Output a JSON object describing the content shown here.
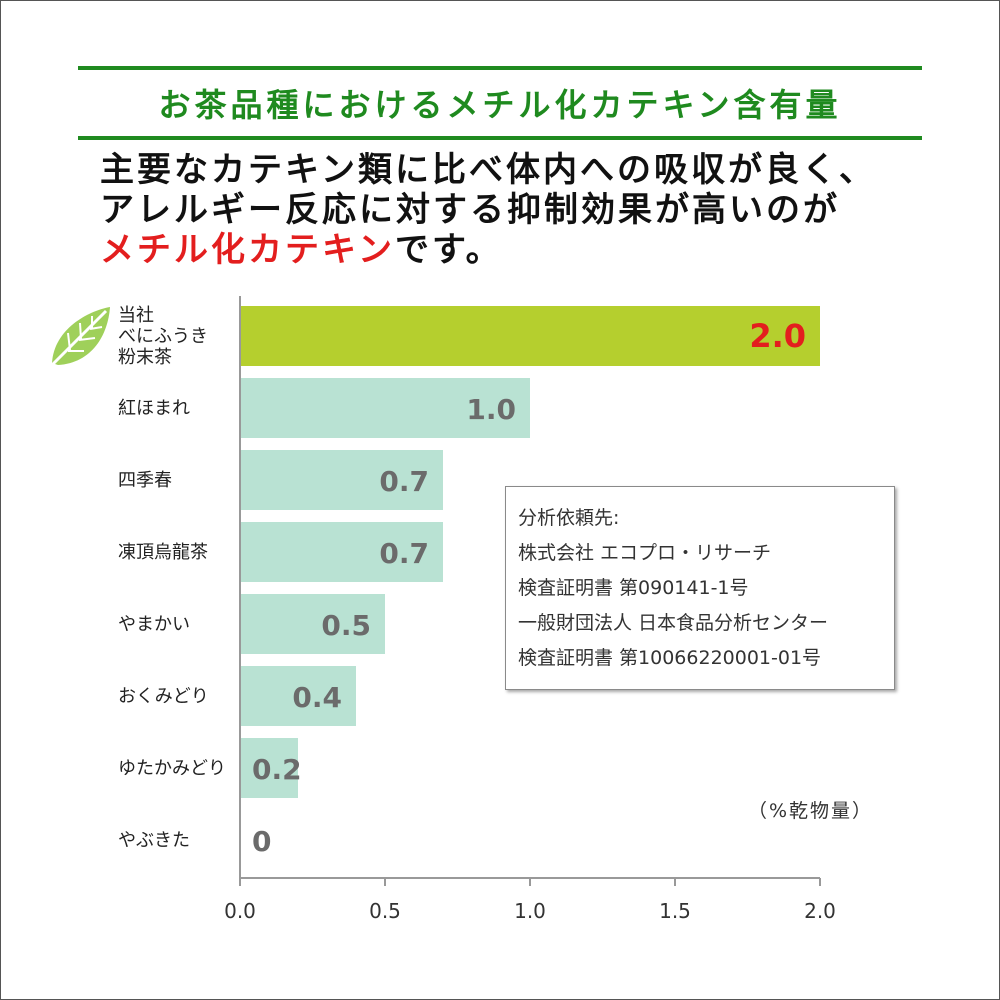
{
  "heading": "お茶品種におけるメチル化カテキン含有量",
  "intro": {
    "line1": "主要なカテキン類に比べ体内への吸収が良く、",
    "line2": "アレルギー反応に対する抑制効果が高いのが",
    "line3_accent": "メチル化カテキン",
    "line3_rest": "です。"
  },
  "colors": {
    "heading": "#1f8a1f",
    "accent_text": "#e31e1e",
    "highlight_bar": "#b5cf2e",
    "bar": "#b9e2d3",
    "highlight_value": "#e31e1e",
    "value": "#6b6b6b",
    "leaf": "#9fd05a"
  },
  "leaf_icon": "leaf-icon",
  "chart_data": {
    "type": "bar",
    "orientation": "horizontal",
    "categories": [
      [
        "当社",
        "べにふうき",
        "粉末茶"
      ],
      [
        "紅ほまれ"
      ],
      [
        "四季春"
      ],
      [
        "凍頂烏龍茶"
      ],
      [
        "やまかい"
      ],
      [
        "おくみどり"
      ],
      [
        "ゆたかみどり"
      ],
      [
        "やぶきた"
      ]
    ],
    "values": [
      2.0,
      1.0,
      0.7,
      0.7,
      0.5,
      0.4,
      0.2,
      0
    ],
    "value_labels": [
      "2.0",
      "1.0",
      "0.7",
      "0.7",
      "0.5",
      "0.4",
      "0.2",
      "0"
    ],
    "highlight_index": 0,
    "xlim": [
      0,
      2.0
    ],
    "xticks": [
      "0.0",
      "0.5",
      "1.0",
      "1.5",
      "2.0"
    ],
    "unit_label": "（%乾物量）",
    "grid": false
  },
  "note": {
    "lines": [
      "分析依頼先:",
      "株式会社 エコプロ・リサーチ",
      "検査証明書 第090141-1号",
      "一般財団法人 日本食品分析センター",
      "検査証明書 第10066220001-01号"
    ]
  }
}
